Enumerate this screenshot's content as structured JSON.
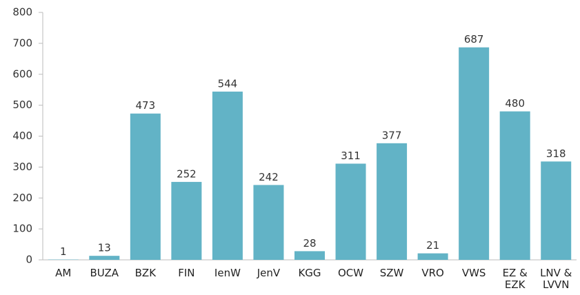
{
  "chart_data": {
    "type": "bar",
    "categories": [
      "AM",
      "BUZA",
      "BZK",
      "FIN",
      "IenW",
      "JenV",
      "KGG",
      "OCW",
      "SZW",
      "VRO",
      "VWS",
      "EZ & EZK",
      "LNV & LVVN"
    ],
    "values": [
      1,
      13,
      473,
      252,
      544,
      242,
      28,
      311,
      377,
      21,
      687,
      480,
      318
    ],
    "color": "#62b3c6",
    "ylim": [
      0,
      800
    ],
    "yticks": [
      0,
      100,
      200,
      300,
      400,
      500,
      600,
      700,
      800
    ],
    "grid": false
  }
}
